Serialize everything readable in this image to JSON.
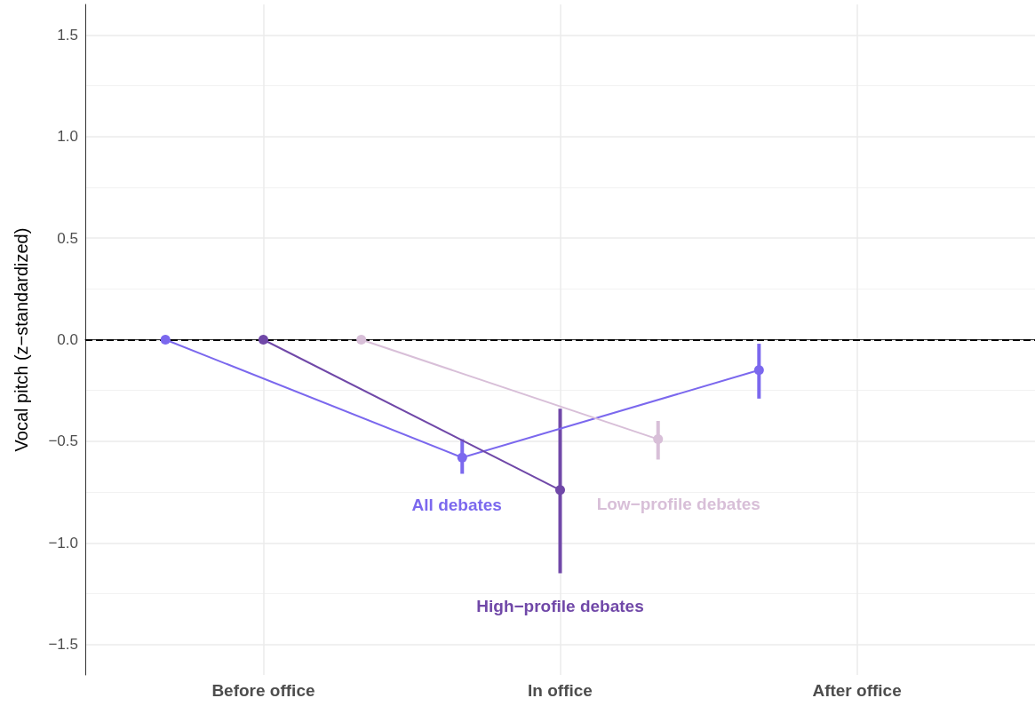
{
  "chart_data": {
    "type": "line",
    "ylabel": "Vocal pitch (z−standardized)",
    "categories": [
      "Before office",
      "In office",
      "After office"
    ],
    "ylim": [
      -1.65,
      1.65
    ],
    "yticks": [
      {
        "value": -1.5,
        "label": "−1.5"
      },
      {
        "value": -1.0,
        "label": "−1.0"
      },
      {
        "value": -0.5,
        "label": "−0.5"
      },
      {
        "value": 0,
        "label": "0.0"
      },
      {
        "value": 0.5,
        "label": "0.5"
      },
      {
        "value": 1.0,
        "label": "1.0"
      },
      {
        "value": 1.5,
        "label": "1.5"
      }
    ],
    "series": [
      {
        "name": "All debates",
        "color": "#7b68ee",
        "values": [
          0,
          -0.58,
          -0.15
        ],
        "errors": [
          null,
          [
            -0.66,
            -0.49
          ],
          [
            -0.29,
            -0.02
          ]
        ]
      },
      {
        "name": "High−profile debates",
        "color": "#7048a8",
        "values": [
          0,
          -0.74,
          null
        ],
        "errors": [
          null,
          [
            -1.15,
            -0.34
          ],
          null
        ]
      },
      {
        "name": "Low−profile debates",
        "color": "#d8bfd8",
        "values": [
          0,
          -0.49,
          null
        ],
        "errors": [
          null,
          [
            -0.59,
            -0.4
          ],
          null
        ]
      }
    ],
    "ref_lines": [
      {
        "axis": "y",
        "value": 0,
        "color": "#000000",
        "line_style": "dashed"
      }
    ],
    "grid": true,
    "legend": false,
    "marker": "circle",
    "line_style": "solid"
  }
}
